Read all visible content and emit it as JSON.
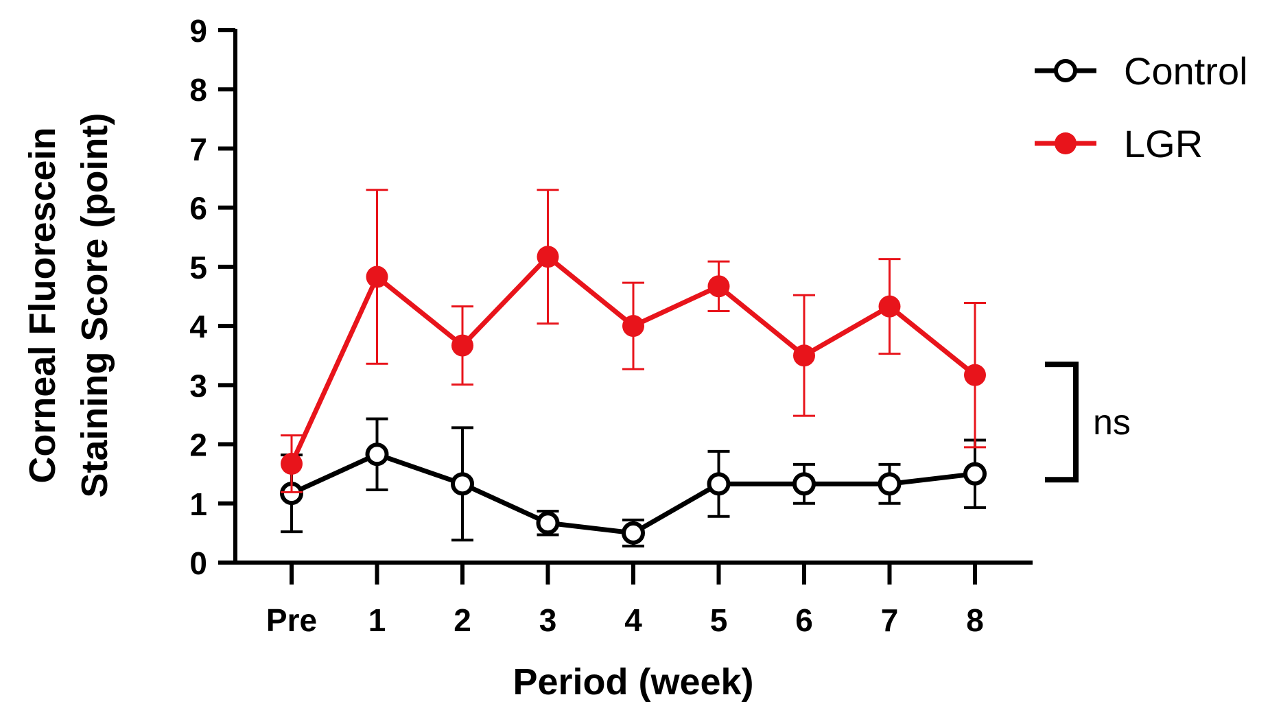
{
  "chart_data": {
    "type": "line",
    "title": "",
    "xlabel": "Period (week)",
    "ylabel_lines": [
      "Corneal Fluorescein",
      "Staining Score (point)"
    ],
    "categories": [
      "Pre",
      "1",
      "2",
      "3",
      "4",
      "5",
      "6",
      "7",
      "8"
    ],
    "ylim": [
      0,
      9
    ],
    "yticks": [
      "0",
      "1",
      "2",
      "3",
      "4",
      "5",
      "6",
      "7",
      "8",
      "9"
    ],
    "legend_position": "top-right",
    "series": [
      {
        "name": "Control",
        "color": "#000000",
        "marker": "open-circle",
        "values": [
          1.17,
          1.83,
          1.33,
          0.67,
          0.5,
          1.33,
          1.33,
          1.33,
          1.5
        ],
        "error": [
          0.65,
          0.6,
          0.95,
          0.2,
          0.22,
          0.55,
          0.33,
          0.33,
          0.57
        ]
      },
      {
        "name": "LGR",
        "color": "#e8141b",
        "marker": "filled-circle",
        "values": [
          1.67,
          4.83,
          3.67,
          5.17,
          4.0,
          4.67,
          3.5,
          4.33,
          3.17
        ],
        "error": [
          0.48,
          1.47,
          0.66,
          1.13,
          0.73,
          0.42,
          1.02,
          0.8,
          1.22
        ]
      }
    ],
    "annotation": {
      "text": "ns",
      "bracket_from": 1.4,
      "bracket_to": 3.35
    }
  }
}
